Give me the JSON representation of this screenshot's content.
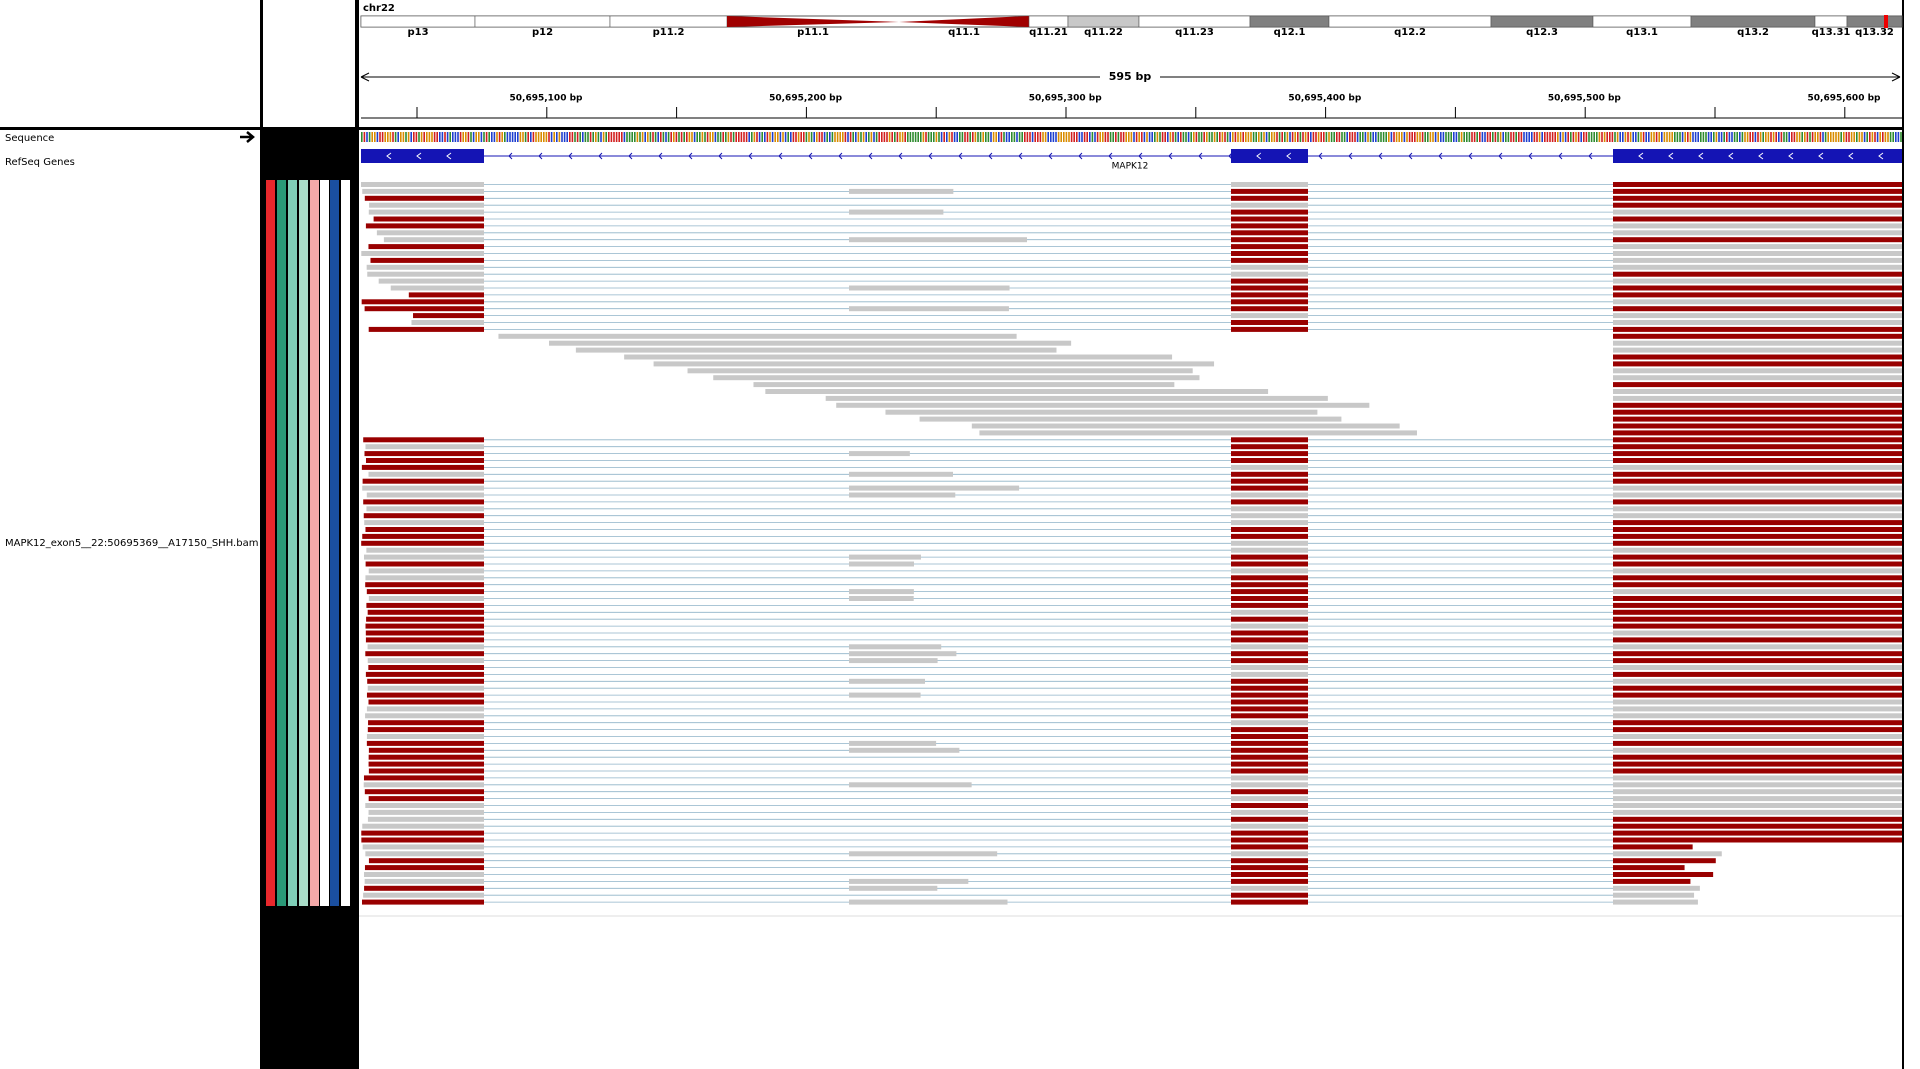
{
  "header": {
    "chromosome": "chr22",
    "cytobands": [
      "p13",
      "p12",
      "p11.2",
      "p11.1",
      "q11.1",
      "q11.21",
      "q11.22",
      "q11.23",
      "q12.1",
      "q12.2",
      "q12.3",
      "q13.1",
      "q13.2",
      "q13.31",
      "q13.32"
    ],
    "span": "595 bp",
    "positions": [
      "50,695,100 bp",
      "50,695,200 bp",
      "50,695,300 bp",
      "50,695,400 bp",
      "50,695,500 bp",
      "50,695,600 bp"
    ]
  },
  "tracks": {
    "sequence": "Sequence",
    "genes": "RefSeq Genes",
    "gene_name": "MAPK12",
    "alignment": "MAPK12_exon5__22:50695369__A17150_SHH.bam"
  }
}
